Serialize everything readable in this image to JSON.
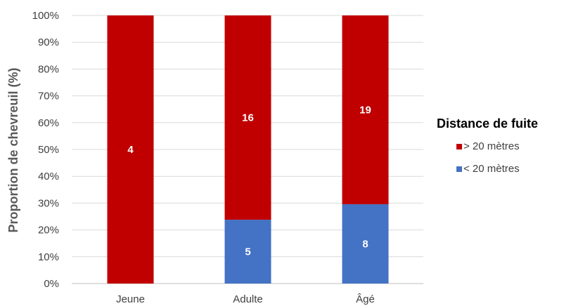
{
  "chart_data": {
    "type": "bar",
    "stacked": true,
    "normalized": true,
    "title": "",
    "xlabel": "",
    "ylabel": "Proportion de chevreuil (%)",
    "ylim": [
      0,
      100
    ],
    "yticks": [
      "0%",
      "10%",
      "20%",
      "30%",
      "40%",
      "50%",
      "60%",
      "70%",
      "80%",
      "90%",
      "100%"
    ],
    "categories": [
      "Jeune",
      "Adulte",
      "Âgé"
    ],
    "series": [
      {
        "name": "< 20 mètres",
        "color": "#4472C4",
        "counts": [
          0,
          5,
          8
        ],
        "percent": [
          0,
          23.8,
          29.6
        ],
        "labels": [
          "",
          "5",
          "8"
        ]
      },
      {
        "name": "> 20 mètres",
        "color": "#C00000",
        "counts": [
          4,
          16,
          19
        ],
        "percent": [
          100,
          76.2,
          70.4
        ],
        "labels": [
          "4",
          "16",
          "19"
        ]
      }
    ],
    "grid": true,
    "legend": {
      "title": "Distance de fuite",
      "position": "right",
      "items": [
        {
          "label": "> 20 mètres",
          "color": "#C00000"
        },
        {
          "label": "< 20 mètres",
          "color": "#4472C4"
        }
      ]
    }
  }
}
